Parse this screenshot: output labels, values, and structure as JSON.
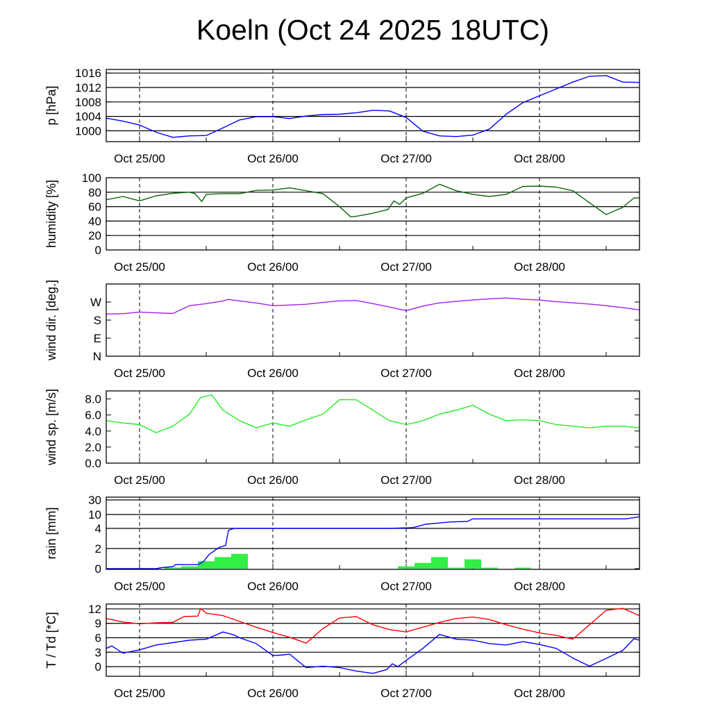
{
  "chart_data": {
    "type": "line",
    "title": "Koeln (Oct 24 2025 18UTC)",
    "x_unit": "hours since Oct 24 18UTC",
    "xlim": [
      0,
      96
    ],
    "x_ticks": [
      {
        "value": 6,
        "label": "Oct 25/00"
      },
      {
        "value": 30,
        "label": "Oct 26/00"
      },
      {
        "value": 54,
        "label": "Oct 27/00"
      },
      {
        "value": 78,
        "label": "Oct 28/00"
      }
    ],
    "colors": {
      "pressure": "#0000ff",
      "humidity": "#0b640b",
      "wind_dir": "#a020f0",
      "wind_speed": "#22ee22",
      "rain_bars": "#33ee44",
      "rain_total": "#0000ff",
      "temperature": "#ff0000",
      "dewpoint": "#0000ff"
    },
    "panels": [
      {
        "id": "pressure",
        "ylabel": "p [hPa]",
        "ylim": [
          997,
          1017
        ],
        "yticks": [
          {
            "value": 1000,
            "label": "1000"
          },
          {
            "value": 1004,
            "label": "1004"
          },
          {
            "value": 1008,
            "label": "1008"
          },
          {
            "value": 1012,
            "label": "1012"
          },
          {
            "value": 1016,
            "label": "1016"
          }
        ],
        "grid": [
          1000,
          1004,
          1008,
          1012,
          1016
        ],
        "series": [
          {
            "name": "pressure",
            "type": "line",
            "color": "#0000ff",
            "x": [
              0,
              3,
              6,
              9,
              12,
              15,
              18,
              21,
              24,
              27,
              30,
              33,
              36,
              39,
              42,
              45,
              48,
              51,
              54,
              57,
              60,
              63,
              66,
              69,
              72,
              75,
              78,
              81,
              84,
              87,
              90,
              93,
              96
            ],
            "y": [
              1003.5,
              1002.7,
              1001.6,
              999.6,
              998.2,
              998.6,
              998.7,
              1000.8,
              1003.0,
              1003.9,
              1003.9,
              1003.4,
              1004.1,
              1004.5,
              1004.6,
              1005.0,
              1005.7,
              1005.5,
              1003.7,
              999.9,
              998.6,
              998.4,
              998.8,
              1000.5,
              1004.6,
              1007.8,
              1009.7,
              1011.6,
              1013.5,
              1015.1,
              1015.3,
              1013.5,
              1013.4
            ]
          }
        ]
      },
      {
        "id": "humidity",
        "ylabel": "humidity [%]",
        "ylim": [
          0,
          100
        ],
        "yticks": [
          {
            "value": 0,
            "label": "0"
          },
          {
            "value": 20,
            "label": "20"
          },
          {
            "value": 40,
            "label": "40"
          },
          {
            "value": 60,
            "label": "60"
          },
          {
            "value": 80,
            "label": "80"
          },
          {
            "value": 100,
            "label": "100"
          }
        ],
        "grid": [
          20,
          40,
          60,
          80
        ],
        "series": [
          {
            "name": "humidity",
            "type": "line",
            "color": "#0b640b",
            "x": [
              0,
              3,
              6,
              9,
              12,
              15,
              16,
              17.2,
              18,
              21,
              24,
              27,
              30,
              33,
              36,
              39,
              42,
              44,
              45,
              48,
              50.7,
              51.8,
              52.8,
              54,
              57,
              60,
              63,
              66,
              69,
              72,
              75,
              78,
              81,
              84,
              87,
              90,
              93,
              95,
              96
            ],
            "y": [
              69.5,
              74,
              68,
              75,
              78.5,
              80,
              78,
              67,
              77,
              78,
              78,
              82.5,
              83,
              86,
              82,
              78,
              60,
              46,
              46.5,
              51,
              56,
              68,
              63,
              72,
              78.5,
              91,
              82,
              77,
              74,
              77,
              88,
              88.5,
              87,
              82,
              65.5,
              49,
              59,
              72,
              72
            ]
          }
        ]
      },
      {
        "id": "wind_dir",
        "ylabel": "wind dir. [deg.]",
        "ylim": [
          0,
          360
        ],
        "yticks": [
          {
            "value": 0,
            "label": "N"
          },
          {
            "value": 90,
            "label": "E"
          },
          {
            "value": 180,
            "label": "S"
          },
          {
            "value": 270,
            "label": "W"
          }
        ],
        "grid": [],
        "series": [
          {
            "name": "wind direction",
            "type": "line",
            "color": "#a020f0",
            "x": [
              0,
              3,
              6,
              9,
              12,
              15,
              18,
              21,
              22,
              24,
              27,
              30,
              33,
              36,
              39,
              42,
              45,
              48,
              51,
              54,
              57,
              60,
              63,
              66,
              69,
              72,
              75,
              78,
              81,
              84,
              87,
              90,
              93,
              96
            ],
            "y": [
              210,
              212,
              220,
              216,
              213,
              252,
              262,
              275,
              283,
              276,
              265,
              252,
              255,
              259,
              268,
              276,
              278,
              262,
              245,
              227,
              250,
              266,
              273,
              280,
              286,
              290,
              284,
              280,
              272,
              266,
              260,
              252,
              242,
              231
            ]
          }
        ]
      },
      {
        "id": "wind_speed",
        "ylabel": "wind sp. [m/s]",
        "ylim": [
          0,
          9
        ],
        "yticks": [
          {
            "value": 0,
            "label": "0.0"
          },
          {
            "value": 2,
            "label": "2.0"
          },
          {
            "value": 4,
            "label": "4.0"
          },
          {
            "value": 6,
            "label": "6.0"
          },
          {
            "value": 8,
            "label": "8.0"
          }
        ],
        "grid": [],
        "series": [
          {
            "name": "wind speed",
            "type": "line",
            "color": "#22ee22",
            "x": [
              0,
              3,
              6,
              9,
              12,
              15,
              17,
              19,
              21,
              24,
              27,
              30,
              33,
              36,
              39,
              42,
              45,
              48,
              51,
              54,
              57,
              60,
              63,
              66,
              69,
              72,
              75,
              78,
              81,
              84,
              87,
              90,
              93,
              96
            ],
            "y": [
              5.3,
              5.0,
              4.8,
              3.8,
              4.6,
              6.1,
              8.2,
              8.5,
              6.6,
              5.3,
              4.4,
              5.0,
              4.6,
              5.4,
              6.1,
              7.9,
              7.9,
              6.6,
              5.3,
              4.8,
              5.3,
              6.1,
              6.6,
              7.2,
              6.1,
              5.3,
              5.4,
              5.3,
              4.8,
              4.6,
              4.4,
              4.6,
              4.6,
              4.4
            ]
          }
        ]
      },
      {
        "id": "rain",
        "ylabel": "rain [mm]",
        "ylim": [
          0,
          35
        ],
        "yscale": "piecewise-by-ticks",
        "yticks": [
          {
            "value": 0,
            "label": "0"
          },
          {
            "value": 2,
            "label": "2"
          },
          {
            "value": 4,
            "label": "4"
          },
          {
            "value": 10,
            "label": "10"
          },
          {
            "value": 30,
            "label": "30"
          }
        ],
        "grid": [
          2,
          4,
          10,
          30
        ],
        "series": [
          {
            "name": "3h precipitation",
            "type": "bar",
            "color": "#33ee44",
            "bar_width_hours": 3,
            "x": [
              12,
              15,
              18,
              21,
              24,
              54,
              57,
              60,
              63,
              66,
              69,
              75
            ],
            "y": [
              0.11,
              0.23,
              0.74,
              1.15,
              1.47,
              0.23,
              0.57,
              1.15,
              0.1,
              0.92,
              0.1,
              0.1
            ]
          },
          {
            "name": "accumulated precipitation",
            "type": "line",
            "color": "#0000ff",
            "x": [
              0,
              9,
              10,
              12,
              12.5,
              16.5,
              17.5,
              18.5,
              20.3,
              21.5,
              22,
              23,
              46,
              51,
              55,
              56,
              57.5,
              62,
              65,
              66,
              93.5,
              96
            ],
            "y": [
              0,
              0,
              0.1,
              0.2,
              0.4,
              0.4,
              0.7,
              1.4,
              2.1,
              2.3,
              3.8,
              4.0,
              4.0,
              4.0,
              4.3,
              4.8,
              5.8,
              6.8,
              7.0,
              8.1,
              8.1,
              9.0
            ]
          }
        ]
      },
      {
        "id": "temperature",
        "ylabel": "T / Td [*C]",
        "ylim": [
          -2,
          13
        ],
        "yticks": [
          {
            "value": 0,
            "label": "0"
          },
          {
            "value": 3,
            "label": "3"
          },
          {
            "value": 6,
            "label": "6"
          },
          {
            "value": 9,
            "label": "9"
          },
          {
            "value": 12,
            "label": "12"
          }
        ],
        "grid": [
          0,
          3,
          6,
          9,
          12
        ],
        "series": [
          {
            "name": "temperature",
            "type": "line",
            "color": "#ff0000",
            "x": [
              0,
              3,
              6,
              9,
              12,
              14,
              16.5,
              17,
              18,
              21,
              24,
              27,
              30,
              33,
              36,
              39,
              42,
              45,
              48,
              51,
              54,
              57,
              60,
              63,
              66,
              69,
              72,
              75,
              78,
              81,
              84,
              87,
              90,
              93,
              96
            ],
            "y": [
              10.0,
              9.3,
              8.9,
              9.1,
              9.2,
              10.4,
              10.5,
              12.1,
              11.1,
              10.6,
              9.4,
              8.2,
              7.1,
              6.1,
              4.9,
              7.9,
              10.1,
              10.4,
              8.7,
              7.7,
              7.2,
              8.2,
              9.2,
              10.0,
              10.3,
              9.8,
              8.7,
              7.8,
              7.0,
              6.5,
              5.7,
              8.7,
              11.7,
              12.1,
              10.6
            ]
          },
          {
            "name": "dewpoint",
            "type": "line",
            "color": "#0000ff",
            "x": [
              0,
              1,
              3,
              6,
              9,
              12,
              15,
              18,
              21,
              23,
              24,
              27,
              30,
              31.5,
              33,
              36,
              39,
              42,
              45,
              48,
              50.5,
              51.5,
              52.5,
              54,
              57,
              60,
              63,
              66,
              69,
              72,
              75,
              78,
              81,
              84,
              87,
              90,
              93,
              95,
              96
            ],
            "y": [
              3.8,
              4.3,
              2.8,
              3.5,
              4.5,
              5.0,
              5.5,
              5.7,
              7.2,
              6.6,
              6.0,
              4.8,
              2.3,
              2.4,
              2.6,
              -0.2,
              0.1,
              -0.2,
              -0.9,
              -1.4,
              -0.6,
              0.6,
              0,
              1.3,
              3.8,
              6.7,
              5.7,
              5.5,
              4.8,
              4.5,
              5.2,
              4.6,
              3.8,
              1.8,
              0.1,
              1.7,
              3.4,
              5.8,
              5.5
            ]
          }
        ]
      }
    ]
  }
}
